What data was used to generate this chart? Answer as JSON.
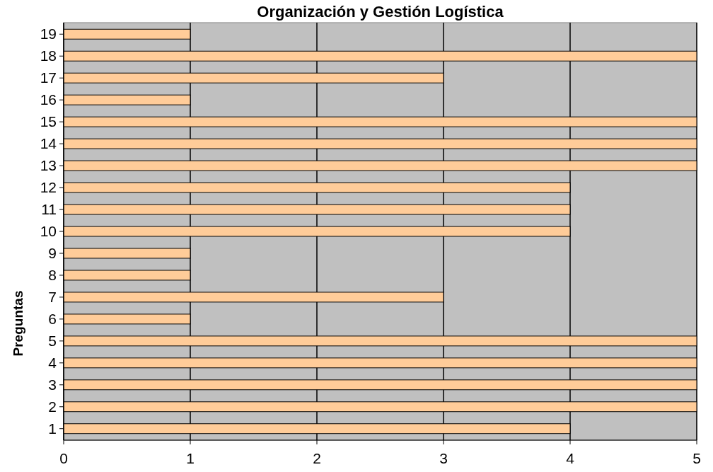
{
  "chart_data": {
    "type": "bar",
    "orientation": "horizontal",
    "title": "Organización y Gestión Logística",
    "ylabel": "Preguntas",
    "categories": [
      "19",
      "18",
      "17",
      "16",
      "15",
      "14",
      "13",
      "12",
      "11",
      "10",
      "9",
      "8",
      "7",
      "6",
      "5",
      "4",
      "3",
      "2",
      "1"
    ],
    "values": [
      1,
      5,
      3,
      1,
      5,
      5,
      5,
      4,
      4,
      4,
      1,
      1,
      3,
      1,
      5,
      5,
      5,
      5,
      4
    ],
    "color": "#ffcc99",
    "xlim": [
      0,
      5
    ],
    "xticks": [
      0,
      1,
      2,
      3,
      4,
      5
    ],
    "grid": "x"
  }
}
